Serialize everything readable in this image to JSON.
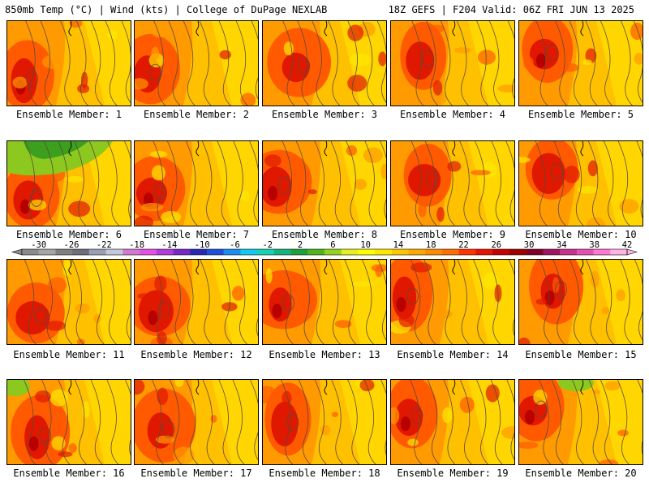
{
  "header": {
    "left": "850mb Temp (°C) | Wind (kts) | College of DuPage NEXLAB",
    "right": "18Z GEFS | F204 Valid: 06Z FRI JUN 13 2025"
  },
  "members": [
    "Ensemble Member: 1",
    "Ensemble Member: 2",
    "Ensemble Member: 3",
    "Ensemble Member: 4",
    "Ensemble Member: 5",
    "Ensemble Member: 6",
    "Ensemble Member: 7",
    "Ensemble Member: 8",
    "Ensemble Member: 9",
    "Ensemble Member: 10",
    "Ensemble Member: 11",
    "Ensemble Member: 12",
    "Ensemble Member: 13",
    "Ensemble Member: 14",
    "Ensemble Member: 15",
    "Ensemble Member: 16",
    "Ensemble Member: 17",
    "Ensemble Member: 18",
    "Ensemble Member: 19",
    "Ensemble Member: 20"
  ],
  "colorbar": {
    "labels": [
      "-30",
      "-26",
      "-22",
      "-18",
      "-14",
      "-10",
      "-6",
      "-2",
      "2",
      "6",
      "10",
      "14",
      "18",
      "22",
      "26",
      "30",
      "34",
      "38",
      "42"
    ],
    "colors": [
      "#8c8c8c",
      "#a6a6a6",
      "#808080",
      "#6e6e7a",
      "#9aa0b4",
      "#c4c8dc",
      "#d27ad2",
      "#e650e6",
      "#b43cdc",
      "#7828c8",
      "#2828b4",
      "#1e50dc",
      "#1e8cf0",
      "#14c8f0",
      "#14d2b4",
      "#14b482",
      "#1ea03c",
      "#50b41e",
      "#96d21e",
      "#e6f01e",
      "#ffff00",
      "#ffe600",
      "#ffc800",
      "#ffaa00",
      "#ff8c00",
      "#ff6e00",
      "#ff3200",
      "#e61400",
      "#c80000",
      "#a00000",
      "#820028",
      "#a01464",
      "#c8328c",
      "#e650b4",
      "#ff78d2",
      "#ffb4e6"
    ]
  },
  "panel_palette": {
    "base": "#ffc000",
    "warm": "#ff9a00",
    "hot": "#ff5a00",
    "vhot": "#e01800",
    "extreme": "#b80000",
    "cool": "#ffe800",
    "green": "#8cc81e",
    "contour": "#5a4a3a"
  }
}
